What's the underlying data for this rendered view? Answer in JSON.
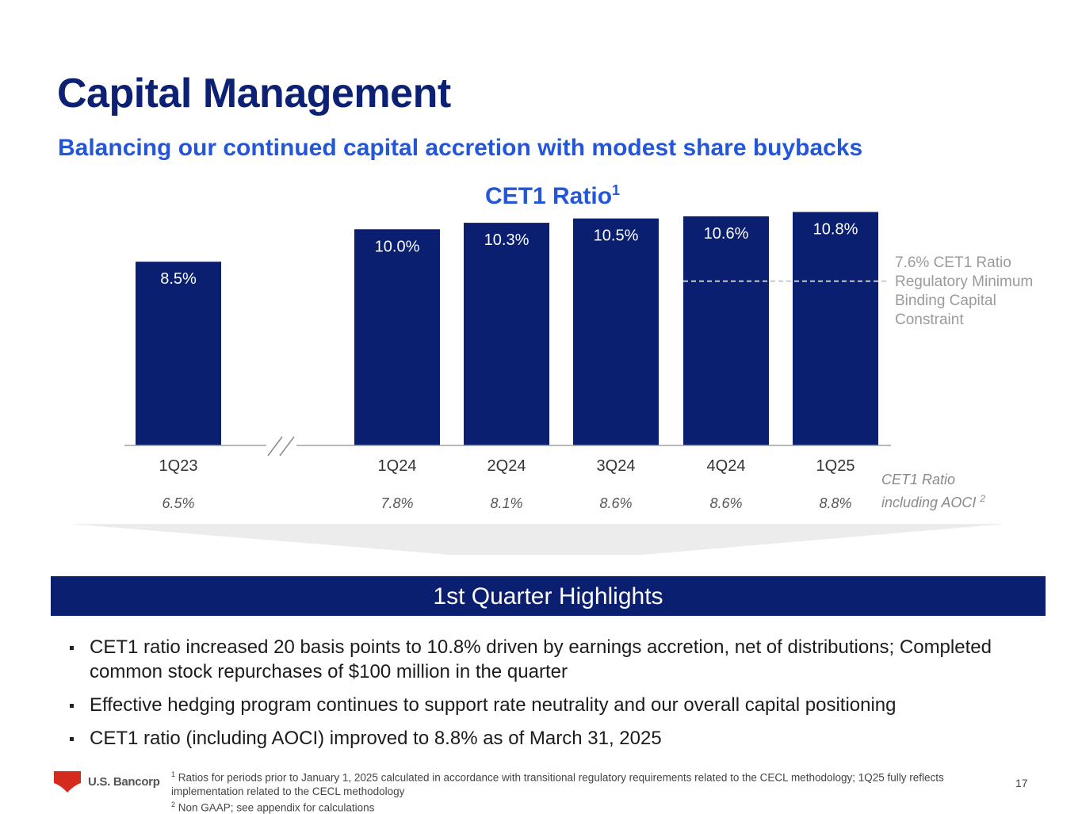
{
  "slide": {
    "title": "Capital Management",
    "subtitle": "Balancing our continued capital accretion with modest share buybacks",
    "page_number": "17"
  },
  "chart_data": {
    "type": "bar",
    "title": "CET1 Ratio",
    "title_footnote": "1",
    "categories": [
      "1Q23",
      "1Q24",
      "2Q24",
      "3Q24",
      "4Q24",
      "1Q25"
    ],
    "values": [
      8.5,
      10.0,
      10.3,
      10.5,
      10.6,
      10.8
    ],
    "value_labels": [
      "8.5%",
      "10.0%",
      "10.3%",
      "10.5%",
      "10.6%",
      "10.8%"
    ],
    "ylim": [
      0,
      11
    ],
    "axis_break_between": [
      "1Q23",
      "1Q24"
    ],
    "reference_line": {
      "value": 7.6,
      "label": "7.6% CET1 Ratio Regulatory Minimum Binding Capital Constraint",
      "label_lines": [
        "7.6% CET1 Ratio",
        "Regulatory Minimum",
        "Binding Capital",
        "Constraint"
      ],
      "applies_to": [
        "4Q24",
        "1Q25"
      ],
      "style": "dashed"
    },
    "secondary_series": {
      "name": "CET1 Ratio including AOCI",
      "name_lines": [
        "CET1 Ratio",
        "including AOCI"
      ],
      "footnote": "2",
      "values": [
        6.5,
        7.8,
        8.1,
        8.6,
        8.6,
        8.8
      ],
      "labels": [
        "6.5%",
        "7.8%",
        "8.1%",
        "8.6%",
        "8.6%",
        "8.8%"
      ]
    },
    "colors": {
      "bar": "#0a1f70",
      "reference": "#c9c9c9",
      "axis": "#a0a0a0"
    }
  },
  "highlights": {
    "heading": "1st Quarter Highlights",
    "bullets": [
      "CET1 ratio increased 20 basis points to 10.8% driven by earnings accretion, net of distributions; Completed common stock repurchases of $100 million in the quarter",
      "Effective hedging program continues to support rate neutrality and our overall capital positioning",
      "CET1 ratio (including AOCI) improved to 8.8% as of March 31, 2025"
    ]
  },
  "footnotes": [
    {
      "marker": "1",
      "text": "Ratios for periods prior to January 1, 2025 calculated in accordance with transitional regulatory requirements related to the CECL methodology; 1Q25 fully reflects implementation related to the CECL methodology"
    },
    {
      "marker": "2",
      "text": "Non GAAP; see appendix for calculations"
    }
  ],
  "logo": {
    "text": "U.S. Bancorp",
    "icon": "shield-icon",
    "color": "#d52b1e"
  }
}
